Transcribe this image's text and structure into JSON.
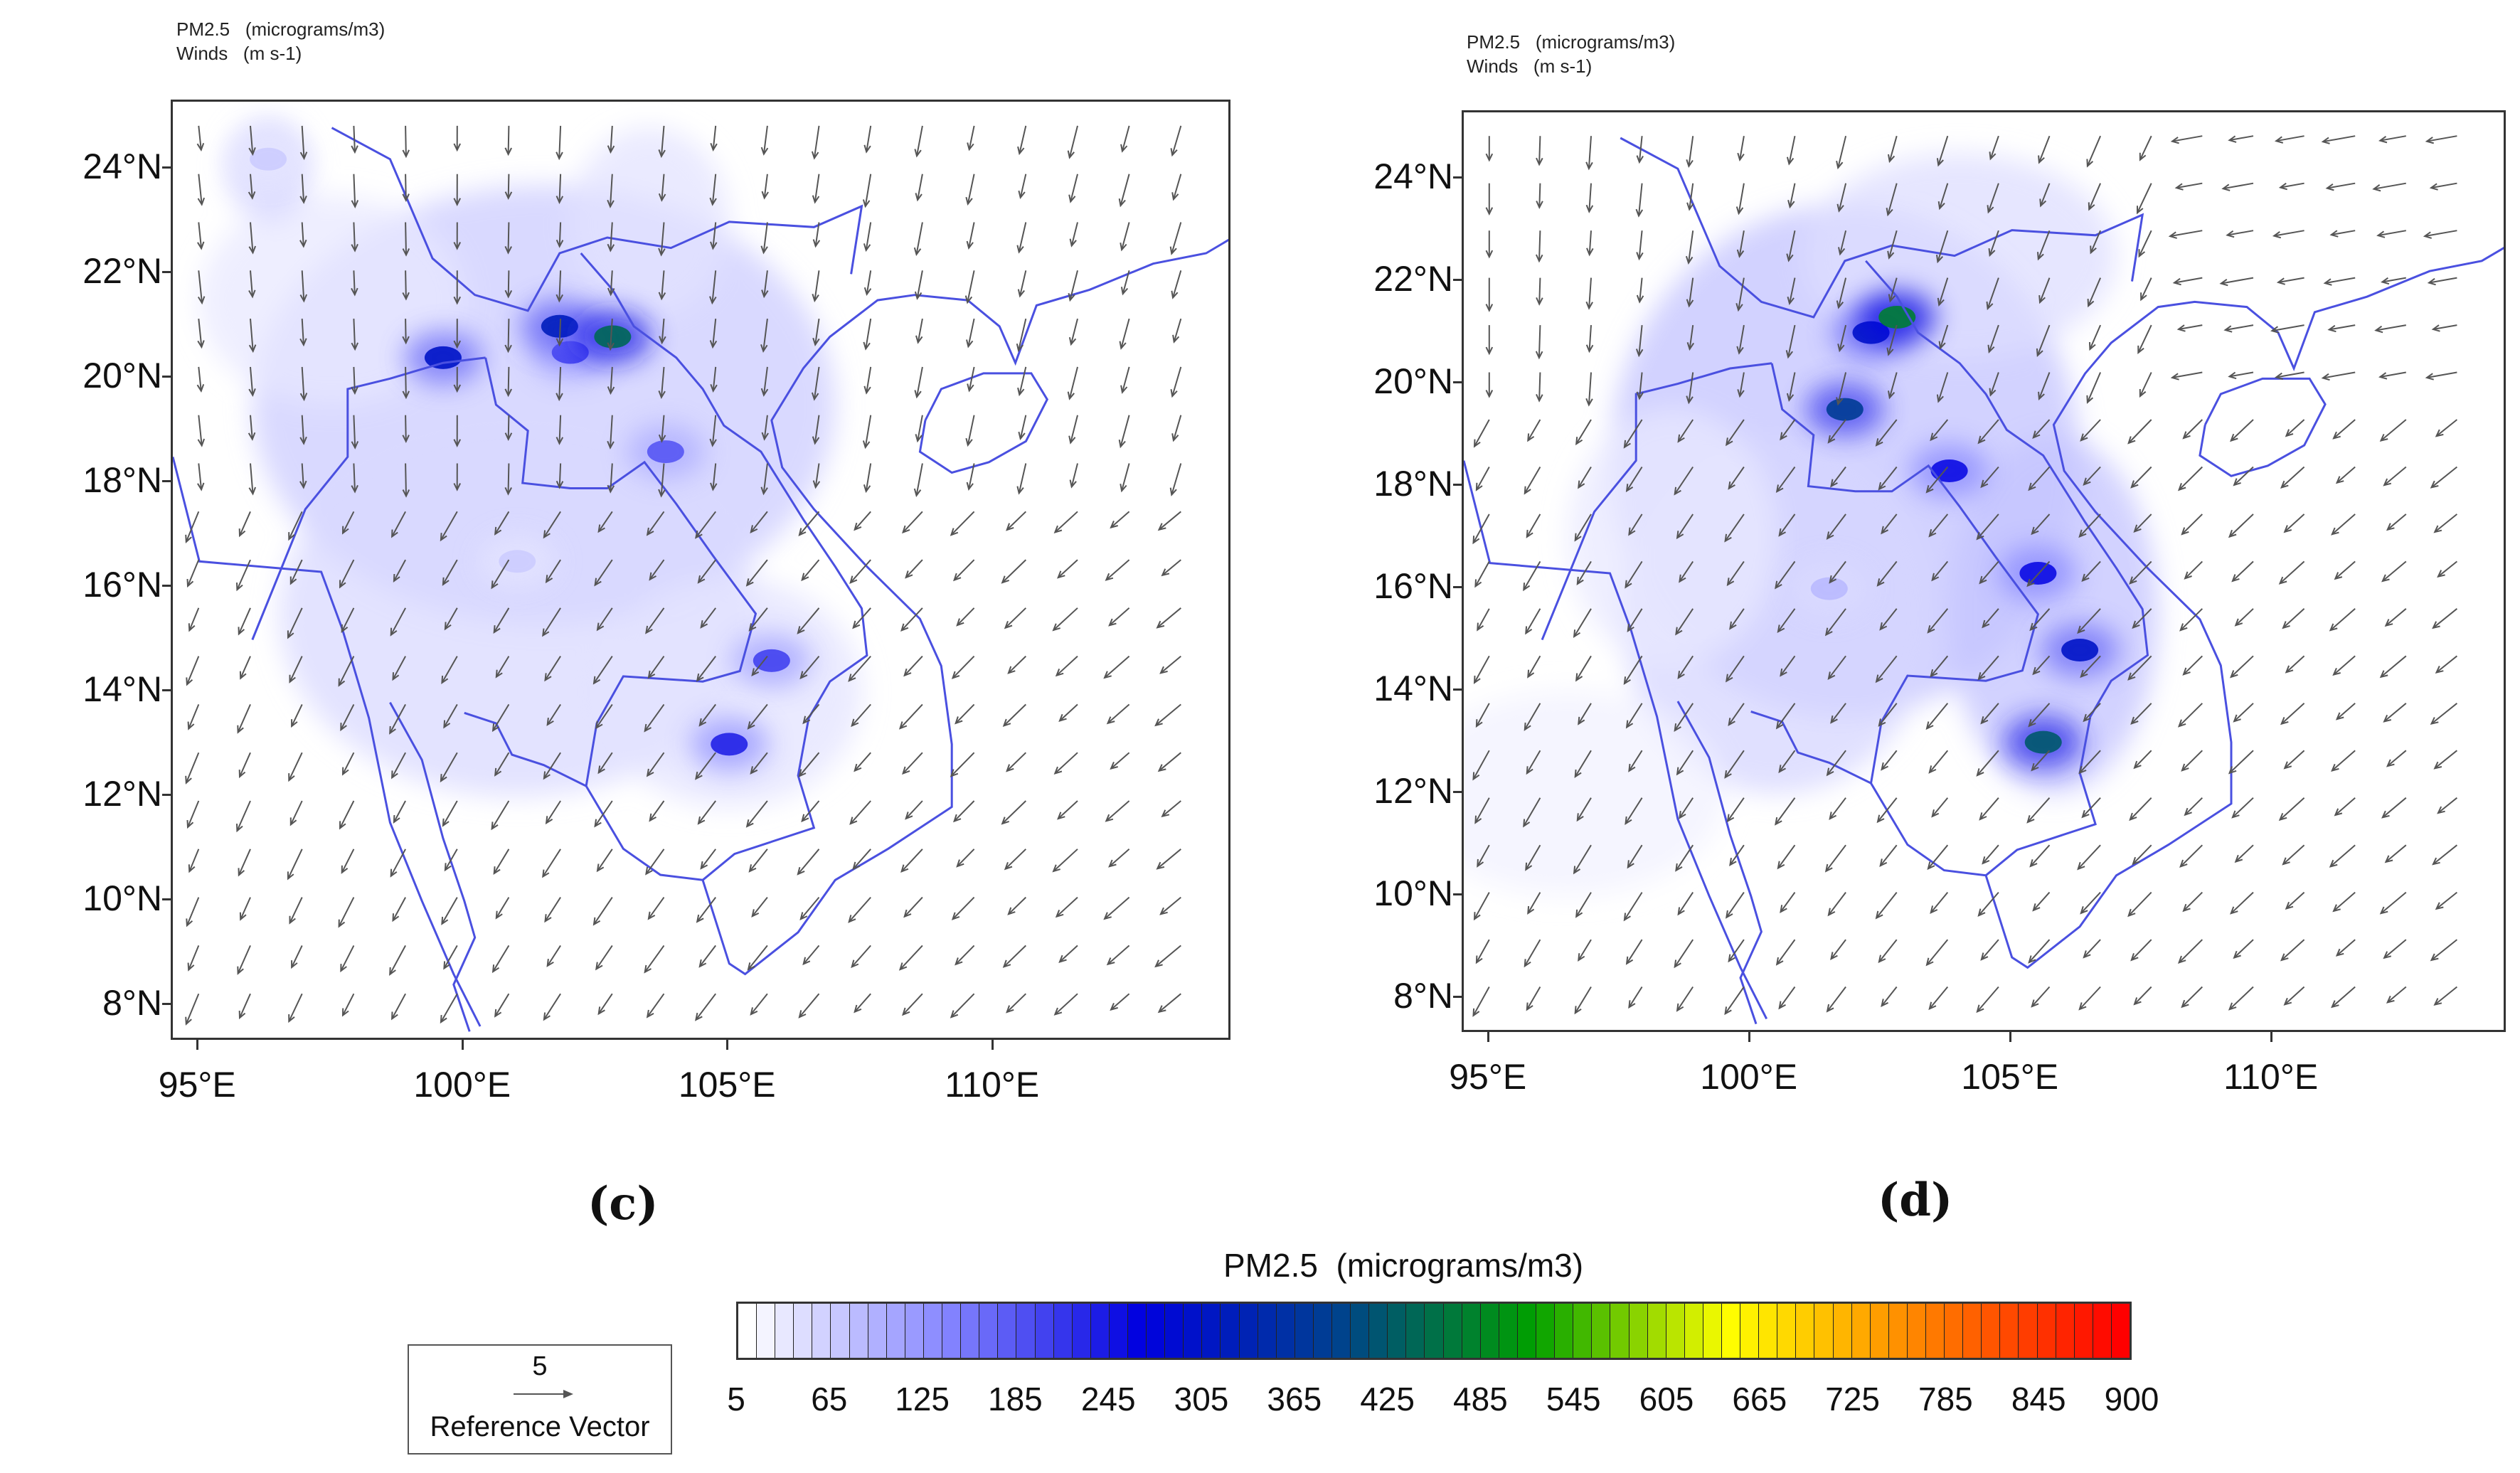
{
  "panels": [
    {
      "id": "c",
      "header_line1": "PM2.5   (micrograms/m3)",
      "header_line2": "Winds   (m s-1)",
      "panel_label": "(c)",
      "lat_labels": [
        "24°N",
        "22°N",
        "20°N",
        "18°N",
        "16°N",
        "14°N",
        "12°N",
        "10°N",
        "8°N"
      ],
      "lon_labels": [
        "95°E",
        "100°E",
        "105°E",
        "110°E"
      ],
      "plumes": [
        {
          "lon": 102.0,
          "lat": 20.5,
          "value": 200
        },
        {
          "lon": 101.8,
          "lat": 21.0,
          "value": 320
        },
        {
          "lon": 102.8,
          "lat": 20.8,
          "value": 440
        },
        {
          "lon": 99.6,
          "lat": 20.4,
          "value": 300
        },
        {
          "lon": 103.8,
          "lat": 18.6,
          "value": 180
        },
        {
          "lon": 105.8,
          "lat": 14.6,
          "value": 200
        },
        {
          "lon": 105.0,
          "lat": 13.0,
          "value": 230
        },
        {
          "lon": 101.0,
          "lat": 16.5,
          "value": 60
        },
        {
          "lon": 96.3,
          "lat": 24.2,
          "value": 60
        }
      ]
    },
    {
      "id": "d",
      "header_line1": "PM2.5   (micrograms/m3)",
      "header_line2": "Winds   (m s-1)",
      "panel_label": "(d)",
      "lat_labels": [
        "24°N",
        "22°N",
        "20°N",
        "18°N",
        "16°N",
        "14°N",
        "12°N",
        "10°N",
        "8°N"
      ],
      "lon_labels": [
        "95°E",
        "100°E",
        "105°E",
        "110°E"
      ],
      "plumes": [
        {
          "lon": 102.3,
          "lat": 21.0,
          "value": 300
        },
        {
          "lon": 102.8,
          "lat": 21.3,
          "value": 470
        },
        {
          "lon": 101.8,
          "lat": 19.5,
          "value": 380
        },
        {
          "lon": 103.8,
          "lat": 18.3,
          "value": 250
        },
        {
          "lon": 105.5,
          "lat": 16.3,
          "value": 250
        },
        {
          "lon": 106.3,
          "lat": 14.8,
          "value": 300
        },
        {
          "lon": 105.6,
          "lat": 13.0,
          "value": 420
        },
        {
          "lon": 101.5,
          "lat": 16.0,
          "value": 80
        }
      ]
    }
  ],
  "colorbar": {
    "title": "PM2.5  (micrograms/m3)",
    "tick_labels": [
      "5",
      "65",
      "125",
      "185",
      "245",
      "305",
      "365",
      "425",
      "485",
      "545",
      "605",
      "665",
      "725",
      "785",
      "845",
      "900"
    ],
    "min": 5,
    "max": 900,
    "colors": [
      "#ffffff",
      "#8888ff",
      "#0000e0",
      "#004090",
      "#00a000",
      "#ffff00",
      "#ff8000",
      "#ff0000"
    ]
  },
  "reference_vector": {
    "magnitude": "5",
    "label": "Reference Vector"
  },
  "map": {
    "land_line_color": "#4a50e0",
    "wind_arrow_color": "#555555",
    "lon_min": 94.5,
    "lon_max": 114.5,
    "lat_min": 7.3,
    "lat_max": 25.3
  }
}
